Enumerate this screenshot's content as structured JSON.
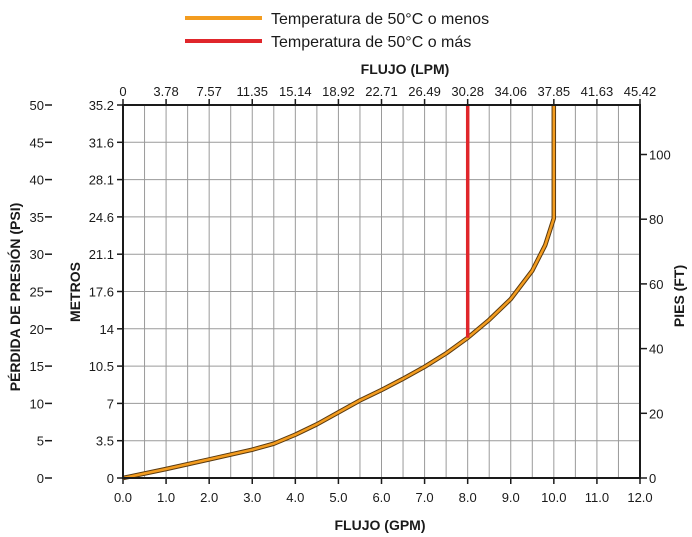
{
  "chart_data": {
    "type": "line",
    "legend_placement": "top-center",
    "grid": true,
    "series": [
      {
        "name": "Temperatura de 50°C o menos",
        "color": "#f39c1f",
        "x": [
          0,
          1,
          2,
          3,
          3.5,
          4,
          4.5,
          5,
          5.5,
          6,
          6.5,
          7,
          7.5,
          8,
          8.5,
          9,
          9.5,
          9.8,
          10,
          10,
          10
        ],
        "y": [
          0,
          1.2,
          2.5,
          3.8,
          4.6,
          5.8,
          7.2,
          8.8,
          10.4,
          11.8,
          13.3,
          14.9,
          16.7,
          18.8,
          21.2,
          24.0,
          27.8,
          31.2,
          34.8,
          40,
          50
        ]
      },
      {
        "name": "Temperatura de 50°C o más",
        "color": "#e0262b",
        "x": [
          8,
          8
        ],
        "y": [
          18.8,
          50
        ]
      }
    ],
    "axes": {
      "bottom": {
        "label": "FLUJO (GPM)",
        "range": [
          0,
          12
        ],
        "ticks": [
          "0.0",
          "1.0",
          "2.0",
          "3.0",
          "4.0",
          "5.0",
          "6.0",
          "7.0",
          "8.0",
          "9.0",
          "10.0",
          "11.0",
          "12.0"
        ]
      },
      "top": {
        "label": "FLUJO (LPM)",
        "ticks": [
          "0",
          "3.78",
          "7.57",
          "11.35",
          "15.14",
          "18.92",
          "22.71",
          "26.49",
          "30.28",
          "34.06",
          "37.85",
          "41.63",
          "45.42"
        ]
      },
      "left_outer": {
        "label": "PÉRDIDA DE PRESIÓN (PSI)",
        "range": [
          0,
          50
        ],
        "ticks": [
          "0",
          "5",
          "10",
          "15",
          "20",
          "25",
          "30",
          "35",
          "40",
          "45",
          "50"
        ]
      },
      "left_inner": {
        "label": "METROS",
        "ticks": [
          "0",
          "3.5",
          "7",
          "10.5",
          "14",
          "17.6",
          "21.1",
          "24.6",
          "28.1",
          "31.6",
          "35.2"
        ]
      },
      "right": {
        "label": "PIES (FT)",
        "range": [
          0,
          115.3
        ],
        "ticks": [
          "0",
          "20",
          "40",
          "60",
          "80",
          "100"
        ],
        "tick_values": [
          0,
          20,
          40,
          60,
          80,
          100
        ]
      }
    }
  }
}
